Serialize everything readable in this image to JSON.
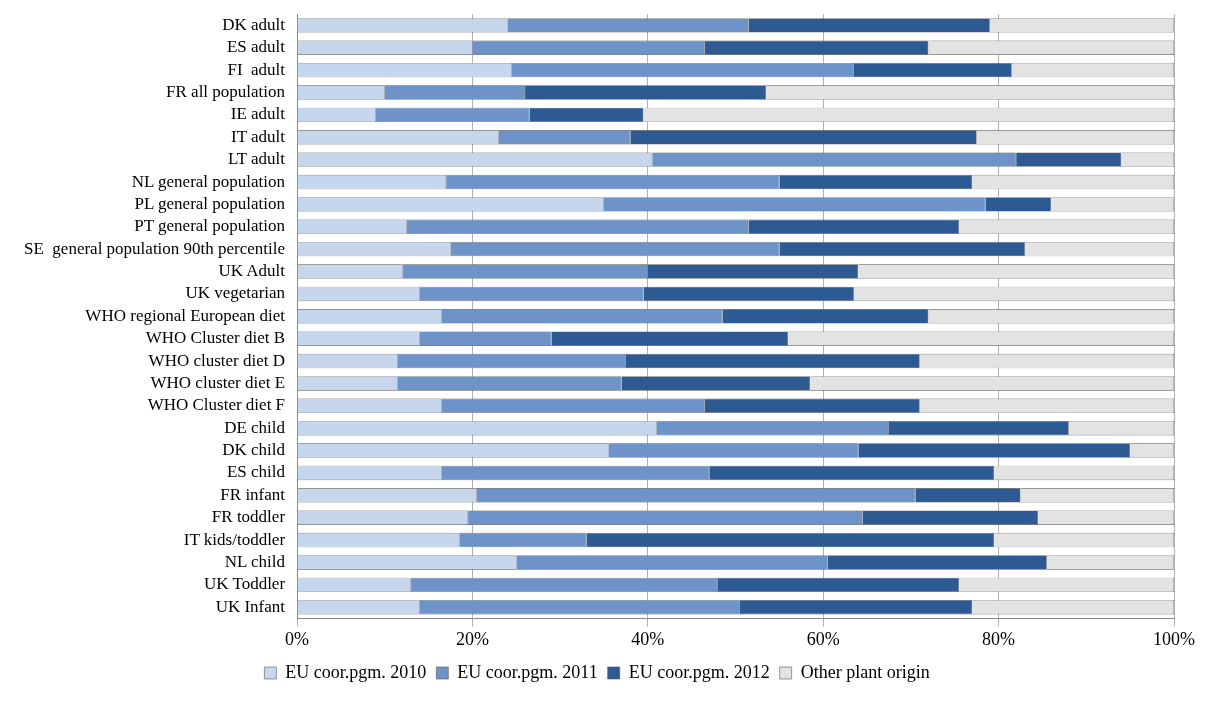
{
  "chart_data": {
    "type": "bar",
    "orientation": "horizontal",
    "stacked": true,
    "grid": "x",
    "legend": "bottom",
    "categories": [
      "DK adult",
      "ES adult",
      "FI  adult",
      "FR all population",
      "IE adult",
      "IT adult",
      "LT adult",
      "NL general population",
      "PL general population",
      "PT general population",
      "SE  general population 90th percentile",
      "UK Adult",
      "UK vegetarian",
      "WHO regional European diet",
      "WHO Cluster diet B",
      "WHO cluster diet D",
      "WHO cluster diet E",
      "WHO Cluster diet F",
      "DE child",
      "DK child",
      "ES child",
      "FR infant",
      "FR toddler",
      "IT kids/toddler",
      "NL child",
      "UK Toddler",
      "UK Infant"
    ],
    "xlim": [
      0,
      100
    ],
    "xticks": [
      {
        "value": 0,
        "label": "0%"
      },
      {
        "value": 20,
        "label": "20%"
      },
      {
        "value": 40,
        "label": "40%"
      },
      {
        "value": 60,
        "label": "60%"
      },
      {
        "value": 80,
        "label": "80%"
      },
      {
        "value": 100,
        "label": "100%"
      }
    ],
    "series": [
      {
        "name": "EU coor.pgm. 2010",
        "color": "#c6d6ec",
        "values": [
          24,
          20,
          24.5,
          10,
          9,
          23,
          40.5,
          17,
          35,
          12.5,
          17.5,
          12,
          14,
          16.5,
          14,
          11.5,
          11.5,
          16.5,
          41,
          35.5,
          16.5,
          20.5,
          19.5,
          18.5,
          25,
          13,
          14
        ]
      },
      {
        "name": "EU coor.pgm. 2011",
        "color": "#6d93c9",
        "values": [
          27.5,
          26.5,
          39,
          16,
          17.5,
          15,
          41.5,
          38,
          43.5,
          39,
          37.5,
          28,
          25.5,
          32,
          15,
          26,
          25.5,
          30,
          26.5,
          28.5,
          30.5,
          50,
          45,
          14.5,
          35.5,
          35,
          36.5
        ]
      },
      {
        "name": "EU coor.pgm. 2012",
        "color": "#2e5a93",
        "values": [
          27.5,
          25.5,
          18,
          27.5,
          13,
          39.5,
          12,
          22,
          7.5,
          24,
          28,
          24,
          24,
          23.5,
          27,
          33.5,
          21.5,
          24.5,
          20.5,
          31,
          32.5,
          12,
          20,
          46.5,
          25,
          27.5,
          26.5
        ]
      },
      {
        "name": "Other plant origin",
        "color": "#e3e3e3",
        "values": [
          21,
          28,
          18.5,
          46.5,
          60.5,
          22.5,
          6,
          23,
          14,
          24.5,
          17,
          36,
          36.5,
          28,
          44,
          29,
          41.5,
          29,
          12,
          5,
          20.5,
          17.5,
          15.5,
          20.5,
          14.5,
          24.5,
          23
        ]
      }
    ]
  }
}
